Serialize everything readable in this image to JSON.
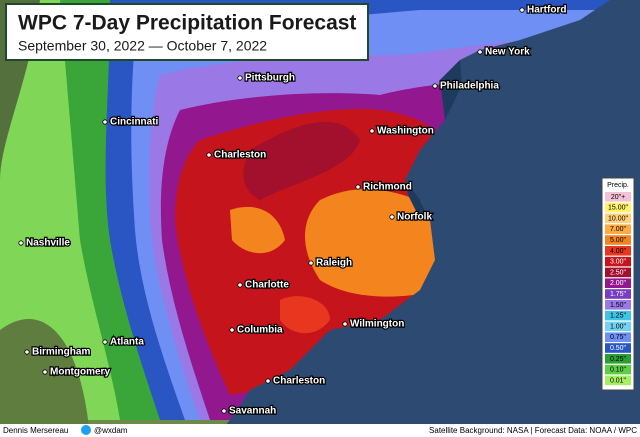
{
  "header": {
    "title": "WPC 7-Day Precipitation Forecast",
    "subtitle": "September 30, 2022 — October 7, 2022"
  },
  "cities": [
    "Hartford",
    "New York",
    "Philadelphia",
    "Pittsburgh",
    "Cincinnati",
    "Washington",
    "Charleston",
    "Richmond",
    "Norfolk",
    "Nashville",
    "Raleigh",
    "Charlotte",
    "Wilmington",
    "Columbia",
    "Atlanta",
    "Birmingham",
    "Charleston",
    "Montgomery",
    "Savannah"
  ],
  "legend": {
    "title": "Precip.",
    "items": [
      {
        "label": "20\"+",
        "color": "#f4c2d6"
      },
      {
        "label": "15.00\"",
        "color": "#fff36a"
      },
      {
        "label": "10.00\"",
        "color": "#ffd27a"
      },
      {
        "label": "7.00\"",
        "color": "#ffab45"
      },
      {
        "label": "5.00\"",
        "color": "#f4851e"
      },
      {
        "label": "4.00\"",
        "color": "#e8361f"
      },
      {
        "label": "3.00\"",
        "color": "#c6141c"
      },
      {
        "label": "2.50\"",
        "color": "#a3102e"
      },
      {
        "label": "2.00\"",
        "color": "#93188f"
      },
      {
        "label": "1.75\"",
        "color": "#7b3cc4"
      },
      {
        "label": "1.50\"",
        "color": "#9a78e6"
      },
      {
        "label": "1.25\"",
        "color": "#3fc4e6"
      },
      {
        "label": "1.00\"",
        "color": "#74d3f2"
      },
      {
        "label": "0.75\"",
        "color": "#6f8ff5"
      },
      {
        "label": "0.50\"",
        "color": "#2a56c4"
      },
      {
        "label": "0.25\"",
        "color": "#2c9e35"
      },
      {
        "label": "0.10\"",
        "color": "#5ccf45"
      },
      {
        "label": "0.01\"",
        "color": "#a6ef63"
      }
    ]
  },
  "footer": {
    "author": "Dennis Mersereau",
    "handle": "@wxdam",
    "credits": "Satellite Background: NASA | Forecast Data: NOAA / WPC"
  }
}
